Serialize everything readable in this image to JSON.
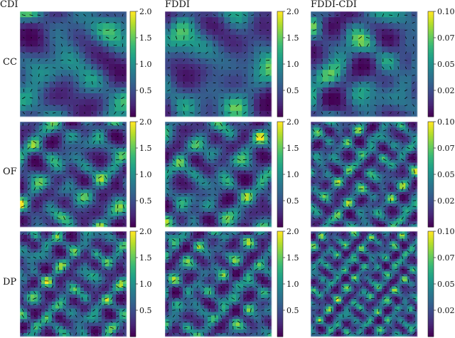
{
  "figure": {
    "column_titles": [
      "CDI",
      "FDDI",
      "FDDI-CDI"
    ],
    "row_labels": [
      "CC",
      "OF",
      "DP"
    ]
  },
  "colors": {
    "viridis": [
      "#440154",
      "#482878",
      "#3e4989",
      "#31688e",
      "#26828e",
      "#1f9e89",
      "#35b779",
      "#6ece58",
      "#b5de2b",
      "#fde725"
    ],
    "arrow": "#000000"
  },
  "chart_data": [
    {
      "type": "heatmap",
      "row": "CC",
      "column": "CDI",
      "field": "flow magnitude with direction arrows",
      "colorbar": {
        "range": [
          0.0,
          2.0
        ],
        "ticks": [
          "0.5",
          "1.0",
          "1.5",
          "2.0"
        ]
      }
    },
    {
      "type": "heatmap",
      "row": "CC",
      "column": "FDDI",
      "field": "flow magnitude with direction arrows",
      "colorbar": {
        "range": [
          0.0,
          2.0
        ],
        "ticks": [
          "0.5",
          "1.0",
          "1.5",
          "2.0"
        ]
      }
    },
    {
      "type": "heatmap",
      "row": "CC",
      "column": "FDDI-CDI",
      "field": "difference magnitude with direction arrows",
      "colorbar": {
        "range": [
          0.0,
          0.1
        ],
        "ticks": [
          "0.025",
          "0.050",
          "0.075",
          "0.100"
        ]
      }
    },
    {
      "type": "heatmap",
      "row": "OF",
      "column": "CDI",
      "field": "flow magnitude with direction arrows",
      "colorbar": {
        "range": [
          0.0,
          2.0
        ],
        "ticks": [
          "0.5",
          "1.0",
          "1.5",
          "2.0"
        ]
      }
    },
    {
      "type": "heatmap",
      "row": "OF",
      "column": "FDDI",
      "field": "flow magnitude with direction arrows",
      "colorbar": {
        "range": [
          0.0,
          2.0
        ],
        "ticks": [
          "0.5",
          "1.0",
          "1.5",
          "2.0"
        ]
      }
    },
    {
      "type": "heatmap",
      "row": "OF",
      "column": "FDDI-CDI",
      "field": "difference magnitude with direction arrows",
      "colorbar": {
        "range": [
          0.0,
          0.1
        ],
        "ticks": [
          "0.025",
          "0.050",
          "0.075",
          "0.100"
        ]
      }
    },
    {
      "type": "heatmap",
      "row": "DP",
      "column": "CDI",
      "field": "flow magnitude with direction arrows",
      "colorbar": {
        "range": [
          0.0,
          2.0
        ],
        "ticks": [
          "0.5",
          "1.0",
          "1.5",
          "2.0"
        ]
      }
    },
    {
      "type": "heatmap",
      "row": "DP",
      "column": "FDDI",
      "field": "flow magnitude with direction arrows",
      "colorbar": {
        "range": [
          0.0,
          2.0
        ],
        "ticks": [
          "0.5",
          "1.0",
          "1.5",
          "2.0"
        ]
      }
    },
    {
      "type": "heatmap",
      "row": "DP",
      "column": "FDDI-CDI",
      "field": "difference magnitude with direction arrows",
      "colorbar": {
        "range": [
          0.0,
          0.1
        ],
        "ticks": [
          "0.025",
          "0.050",
          "0.075",
          "0.100"
        ]
      }
    }
  ]
}
